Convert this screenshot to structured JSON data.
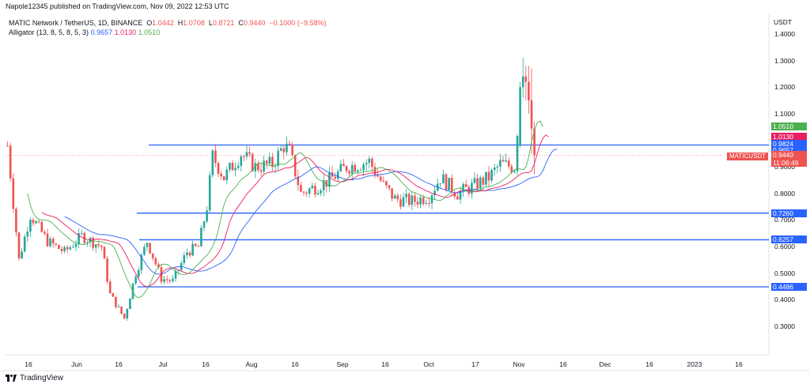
{
  "published": "Napole12345 published on TradingView.com, Nov 09, 2022 12:53 UTC",
  "header": {
    "symbol": "MATIC Network / TetherUS, 1D, BINANCE",
    "o_label": "O",
    "o_value": "1.0442",
    "h_label": "H",
    "h_value": "1.0708",
    "l_label": "L",
    "l_value": "0.8721",
    "c_label": "C",
    "c_value": "0.9440",
    "change": "−0.1000 (−9.58%)",
    "indicator": "Alligator (13, 8, 5, 8, 5, 3)",
    "jaw_value": "0.9657",
    "teeth_value": "1.0130",
    "lips_value": "1.0510"
  },
  "footer": {
    "brand": "TradingView"
  },
  "price_axis": {
    "unit": "USDT",
    "ticks": [
      "1.4000",
      "1.3000",
      "1.2000",
      "1.1000",
      "0.9000",
      "0.8000",
      "0.7000",
      "0.6000",
      "0.5000",
      "0.4000",
      "0.3000"
    ]
  },
  "time_axis": {
    "labels": [
      "16",
      "Jun",
      "16",
      "Jul",
      "16",
      "Aug",
      "16",
      "Sep",
      "16",
      "Oct",
      "17",
      "Nov",
      "16",
      "Dec",
      "16",
      "2023",
      "16"
    ]
  },
  "price_tags": [
    {
      "text": "1.0510",
      "color": "#4caf50"
    },
    {
      "text": "1.0130",
      "color": "#e91e63"
    },
    {
      "text": "0.9824",
      "color": "#2962ff"
    },
    {
      "text": "0.9657",
      "color": "#2962ff"
    },
    {
      "text": "0.9440",
      "color": "#ef5350"
    },
    {
      "text": "11:06:49",
      "color": "#ef5350"
    },
    {
      "text": "0.7260",
      "color": "#2962ff"
    },
    {
      "text": "0.6257",
      "color": "#2962ff"
    },
    {
      "text": "0.4486",
      "color": "#2962ff"
    }
  ],
  "symbol_tag": "MATICUSDT",
  "colors": {
    "up": "#26a69a",
    "down": "#ef5350",
    "jaw": "#2962ff",
    "teeth": "#e91e63",
    "lips": "#4caf50",
    "level": "#2962ff"
  },
  "chart_data": {
    "type": "candlestick",
    "ylim": [
      0.2,
      1.45
    ],
    "horizontal_levels": [
      0.9824,
      0.726,
      0.6257,
      0.4486
    ],
    "close_anchors": [
      [
        "2022-05-08",
        0.98
      ],
      [
        "2022-05-12",
        0.55
      ],
      [
        "2022-05-16",
        0.72
      ],
      [
        "2022-05-22",
        0.62
      ],
      [
        "2022-05-28",
        0.58
      ],
      [
        "2022-06-03",
        0.64
      ],
      [
        "2022-06-10",
        0.6
      ],
      [
        "2022-06-13",
        0.42
      ],
      [
        "2022-06-18",
        0.33
      ],
      [
        "2022-06-22",
        0.5
      ],
      [
        "2022-06-26",
        0.62
      ],
      [
        "2022-07-01",
        0.48
      ],
      [
        "2022-07-05",
        0.47
      ],
      [
        "2022-07-10",
        0.58
      ],
      [
        "2022-07-14",
        0.6
      ],
      [
        "2022-07-17",
        0.75
      ],
      [
        "2022-07-19",
        0.94
      ],
      [
        "2022-07-23",
        0.86
      ],
      [
        "2022-07-29",
        0.95
      ],
      [
        "2022-08-03",
        0.9
      ],
      [
        "2022-08-09",
        0.91
      ],
      [
        "2022-08-13",
        0.98
      ],
      [
        "2022-08-15",
        0.96
      ],
      [
        "2022-08-19",
        0.8
      ],
      [
        "2022-08-23",
        0.82
      ],
      [
        "2022-08-29",
        0.85
      ],
      [
        "2022-09-04",
        0.9
      ],
      [
        "2022-09-12",
        0.92
      ],
      [
        "2022-09-17",
        0.83
      ],
      [
        "2022-09-21",
        0.78
      ],
      [
        "2022-09-27",
        0.77
      ],
      [
        "2022-10-03",
        0.79
      ],
      [
        "2022-10-07",
        0.86
      ],
      [
        "2022-10-13",
        0.8
      ],
      [
        "2022-10-19",
        0.83
      ],
      [
        "2022-10-24",
        0.86
      ],
      [
        "2022-10-28",
        0.91
      ],
      [
        "2022-11-02",
        0.9
      ],
      [
        "2022-11-04",
        1.18
      ],
      [
        "2022-11-06",
        1.24
      ],
      [
        "2022-11-07",
        1.15
      ],
      [
        "2022-11-08",
        1.04
      ],
      [
        "2022-11-09",
        0.944
      ]
    ],
    "alligator": {
      "jaw_end": 0.9657,
      "teeth_end": 1.013,
      "lips_end": 1.051
    },
    "x_start": "2022-05-07",
    "x_end": "2023-01-20"
  }
}
